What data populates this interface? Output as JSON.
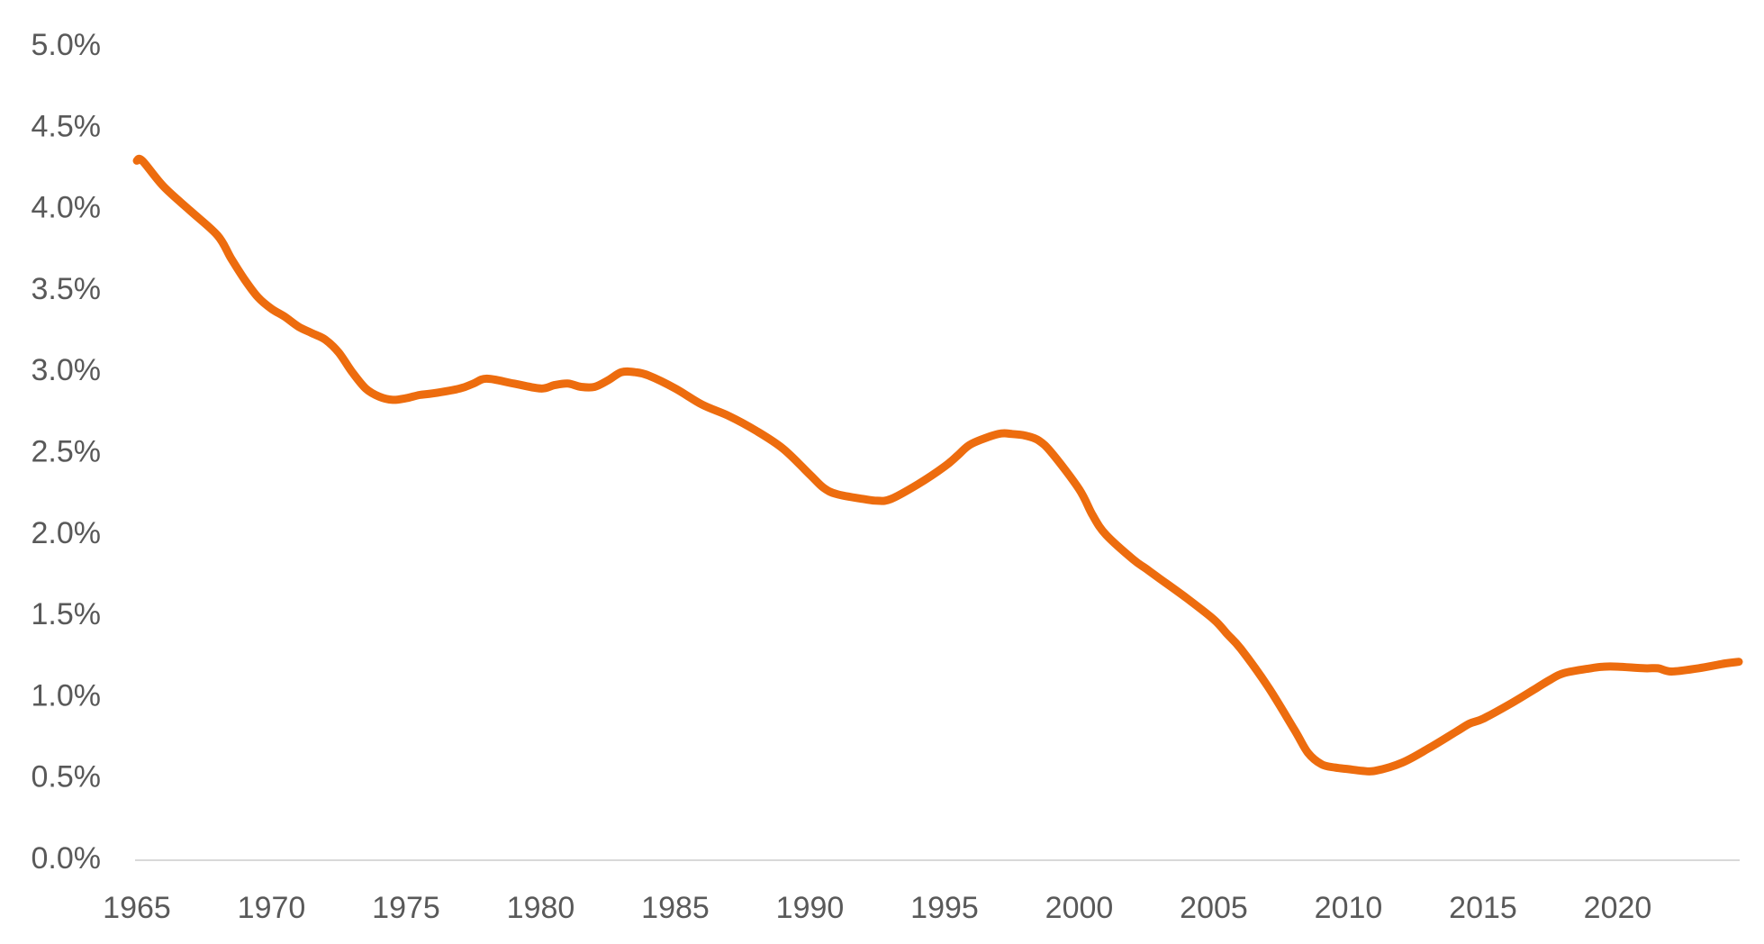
{
  "chart_data": {
    "type": "line",
    "title": "",
    "xlabel": "",
    "ylabel": "",
    "xlim": [
      1965,
      2024.5
    ],
    "ylim": [
      0,
      5
    ],
    "grid": false,
    "legend": "none",
    "y_ticks": [
      "0.0%",
      "0.5%",
      "1.0%",
      "1.5%",
      "2.0%",
      "2.5%",
      "3.0%",
      "3.5%",
      "4.0%",
      "4.5%",
      "5.0%"
    ],
    "x_ticks": [
      "1965",
      "1970",
      "1975",
      "1980",
      "1985",
      "1990",
      "1995",
      "2000",
      "2005",
      "2010",
      "2015",
      "2020"
    ],
    "series": [
      {
        "color": "#ed6c0e",
        "x": [
          1965.0,
          1965.2,
          1966.0,
          1967.0,
          1968.0,
          1968.5,
          1969.0,
          1969.5,
          1970.0,
          1970.5,
          1971.0,
          1971.5,
          1972.0,
          1972.5,
          1973.0,
          1973.5,
          1974.0,
          1974.5,
          1975.0,
          1975.5,
          1976.0,
          1977.0,
          1977.5,
          1978.0,
          1979.0,
          1980.0,
          1980.5,
          1981.0,
          1981.5,
          1982.0,
          1982.5,
          1983.0,
          1983.5,
          1984.0,
          1985.0,
          1986.0,
          1987.0,
          1988.0,
          1989.0,
          1990.0,
          1990.5,
          1991.0,
          1992.0,
          1992.5,
          1993.0,
          1994.0,
          1995.0,
          1995.5,
          1996.0,
          1997.0,
          1997.5,
          1998.0,
          1998.5,
          1999.0,
          2000.0,
          2000.5,
          2001.0,
          2002.0,
          2002.5,
          2003.0,
          2004.0,
          2005.0,
          2005.5,
          2006.0,
          2007.0,
          2008.0,
          2008.5,
          2009.0,
          2009.5,
          2010.0,
          2010.5,
          2011.0,
          2012.0,
          2013.0,
          2014.0,
          2014.5,
          2015.0,
          2016.0,
          2017.0,
          2017.5,
          2018.0,
          2019.0,
          2019.5,
          2020.0,
          2021.0,
          2021.5,
          2022.0,
          2023.0,
          2024.0,
          2024.5
        ],
        "values": [
          4.3,
          4.3,
          4.14,
          3.99,
          3.84,
          3.7,
          3.57,
          3.46,
          3.39,
          3.34,
          3.28,
          3.24,
          3.2,
          3.12,
          3.0,
          2.9,
          2.85,
          2.83,
          2.84,
          2.86,
          2.87,
          2.9,
          2.93,
          2.96,
          2.93,
          2.9,
          2.92,
          2.93,
          2.91,
          2.91,
          2.95,
          3.0,
          3.0,
          2.98,
          2.9,
          2.8,
          2.73,
          2.64,
          2.53,
          2.37,
          2.29,
          2.25,
          2.22,
          2.21,
          2.22,
          2.31,
          2.42,
          2.49,
          2.56,
          2.62,
          2.62,
          2.61,
          2.58,
          2.5,
          2.28,
          2.12,
          2.0,
          1.85,
          1.79,
          1.73,
          1.61,
          1.48,
          1.39,
          1.3,
          1.07,
          0.8,
          0.66,
          0.59,
          0.57,
          0.56,
          0.55,
          0.55,
          0.6,
          0.69,
          0.79,
          0.84,
          0.87,
          0.96,
          1.06,
          1.11,
          1.15,
          1.18,
          1.19,
          1.19,
          1.18,
          1.18,
          1.16,
          1.18,
          1.21,
          1.22
        ]
      }
    ]
  }
}
